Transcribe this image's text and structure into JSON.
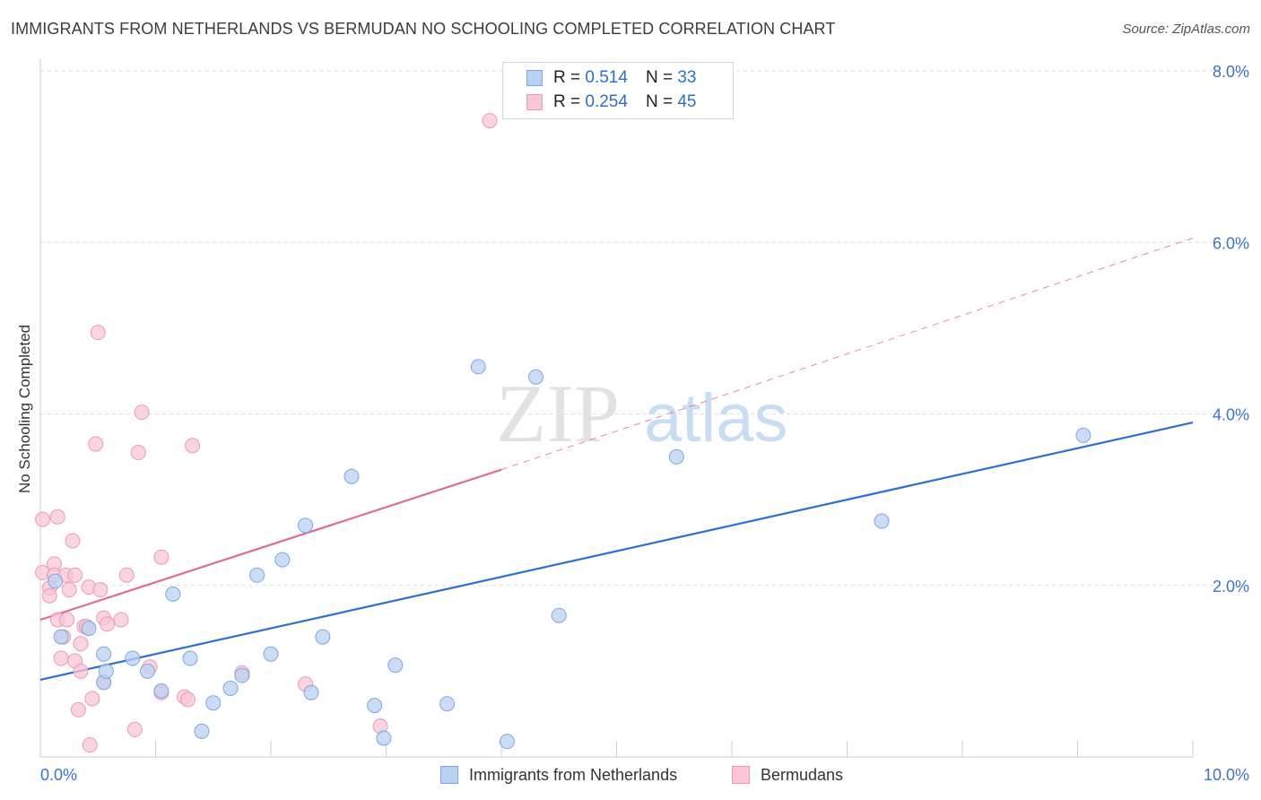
{
  "title": "IMMIGRANTS FROM NETHERLANDS VS BERMUDAN NO SCHOOLING COMPLETED CORRELATION CHART",
  "source": "Source: ZipAtlas.com",
  "watermark": {
    "zip": "ZIP",
    "atlas": "atlas"
  },
  "legend": {
    "rows": [
      {
        "r_label": "R =",
        "r_value": "0.514",
        "n_label": "N =",
        "n_value": "33"
      },
      {
        "r_label": "R =",
        "r_value": "0.254",
        "n_label": "N =",
        "n_value": "45"
      }
    ]
  },
  "colors": {
    "blue_fill": "#b9d2f3",
    "blue_stroke": "#7ea7de",
    "blue_line": "#2c6fcf",
    "pink_fill": "#f8c6d5",
    "pink_stroke": "#ec9ab5",
    "pink_line": "#e06b93",
    "tick_text": "#3d74c9",
    "grid": "#dddddd"
  },
  "chart_data": {
    "type": "scatter",
    "title": "IMMIGRANTS FROM NETHERLANDS VS BERMUDAN NO SCHOOLING COMPLETED CORRELATION CHART",
    "xlabel": "",
    "ylabel": "No Schooling Completed",
    "xlim": [
      0,
      10
    ],
    "ylim": [
      0,
      8
    ],
    "x_tick_labels": [
      "0.0%",
      "10.0%"
    ],
    "y_ticks": [
      2,
      4,
      6,
      8
    ],
    "y_tick_labels": [
      "2.0%",
      "4.0%",
      "6.0%",
      "8.0%"
    ],
    "grid": "horizontal dashed",
    "series": [
      {
        "name": "Immigrants from Netherlands",
        "color": "#2c6fcf",
        "points": [
          [
            0.13,
            2.05
          ],
          [
            0.18,
            1.4
          ],
          [
            0.42,
            1.5
          ],
          [
            0.55,
            0.87
          ],
          [
            0.55,
            1.2
          ],
          [
            0.57,
            1.0
          ],
          [
            0.8,
            1.15
          ],
          [
            0.93,
            1.0
          ],
          [
            1.05,
            0.77
          ],
          [
            1.15,
            1.9
          ],
          [
            1.3,
            1.15
          ],
          [
            1.4,
            0.3
          ],
          [
            1.5,
            0.63
          ],
          [
            1.65,
            0.8
          ],
          [
            1.75,
            0.95
          ],
          [
            1.88,
            2.12
          ],
          [
            2.0,
            1.2
          ],
          [
            2.1,
            2.3
          ],
          [
            2.3,
            2.7
          ],
          [
            2.35,
            0.75
          ],
          [
            2.45,
            1.4
          ],
          [
            2.7,
            3.27
          ],
          [
            2.9,
            0.6
          ],
          [
            2.98,
            0.22
          ],
          [
            3.08,
            1.07
          ],
          [
            3.53,
            0.62
          ],
          [
            3.8,
            4.55
          ],
          [
            4.05,
            0.18
          ],
          [
            4.3,
            4.43
          ],
          [
            4.5,
            1.65
          ],
          [
            5.52,
            3.5
          ],
          [
            7.3,
            2.75
          ],
          [
            9.05,
            3.75
          ]
        ]
      },
      {
        "name": "Bermudans",
        "color": "#e06b93",
        "points": [
          [
            0.02,
            2.15
          ],
          [
            0.02,
            2.77
          ],
          [
            0.08,
            1.97
          ],
          [
            0.08,
            1.88
          ],
          [
            0.12,
            2.25
          ],
          [
            0.12,
            2.12
          ],
          [
            0.15,
            1.6
          ],
          [
            0.15,
            2.8
          ],
          [
            0.18,
            1.15
          ],
          [
            0.2,
            1.4
          ],
          [
            0.22,
            2.12
          ],
          [
            0.23,
            1.6
          ],
          [
            0.25,
            1.95
          ],
          [
            0.28,
            2.52
          ],
          [
            0.3,
            1.12
          ],
          [
            0.3,
            2.12
          ],
          [
            0.33,
            0.55
          ],
          [
            0.35,
            1.0
          ],
          [
            0.35,
            1.32
          ],
          [
            0.38,
            1.52
          ],
          [
            0.4,
            1.52
          ],
          [
            0.42,
            1.98
          ],
          [
            0.43,
            0.14
          ],
          [
            0.45,
            0.68
          ],
          [
            0.48,
            3.65
          ],
          [
            0.5,
            4.95
          ],
          [
            0.52,
            1.95
          ],
          [
            0.55,
            0.87
          ],
          [
            0.55,
            1.62
          ],
          [
            0.58,
            1.55
          ],
          [
            0.7,
            1.6
          ],
          [
            0.75,
            2.12
          ],
          [
            0.82,
            0.32
          ],
          [
            0.85,
            3.55
          ],
          [
            0.88,
            4.02
          ],
          [
            0.95,
            1.05
          ],
          [
            1.05,
            0.75
          ],
          [
            1.05,
            2.33
          ],
          [
            1.25,
            0.7
          ],
          [
            1.28,
            0.67
          ],
          [
            1.32,
            3.63
          ],
          [
            1.75,
            0.98
          ],
          [
            2.3,
            0.85
          ],
          [
            2.95,
            0.36
          ],
          [
            3.9,
            7.42
          ]
        ]
      }
    ],
    "trendlines": [
      {
        "series": "Immigrants from Netherlands",
        "x": [
          0,
          10
        ],
        "y": [
          0.9,
          3.9
        ]
      },
      {
        "series": "Bermudans",
        "x": [
          0,
          4.0
        ],
        "y": [
          1.6,
          3.35
        ],
        "extended_dashed_to": [
          10,
          6.05
        ]
      }
    ]
  }
}
